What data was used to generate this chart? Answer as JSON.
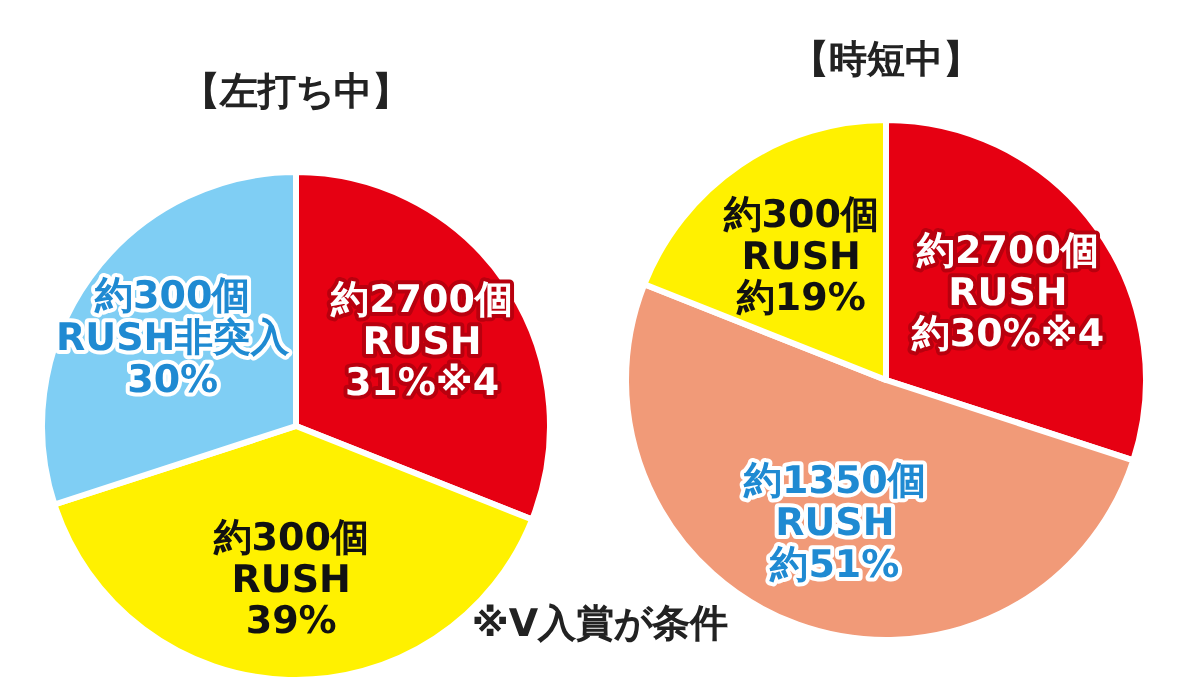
{
  "chart_data": [
    {
      "type": "pie",
      "title": "【左打ち中】",
      "categories": [
        "約2700個\nRUSH",
        "約300個\nRUSH",
        "約300個\nRUSH非突入"
      ],
      "values": [
        31,
        39,
        30
      ],
      "colors": [
        "#e60012",
        "#fff100",
        "#7fcef4"
      ],
      "value_labels": [
        "31%※4",
        "39%",
        "30%"
      ],
      "annotations": [
        "※V入賞が条件"
      ]
    },
    {
      "type": "pie",
      "title": "【時短中】",
      "categories": [
        "約2700個\nRUSH",
        "約1350個\nRUSH",
        "約300個\nRUSH"
      ],
      "values": [
        30,
        51,
        19
      ],
      "colors": [
        "#e60012",
        "#f19a78",
        "#fff100"
      ],
      "value_labels": [
        "約30%※4",
        "約51%",
        "約19%"
      ]
    }
  ]
}
